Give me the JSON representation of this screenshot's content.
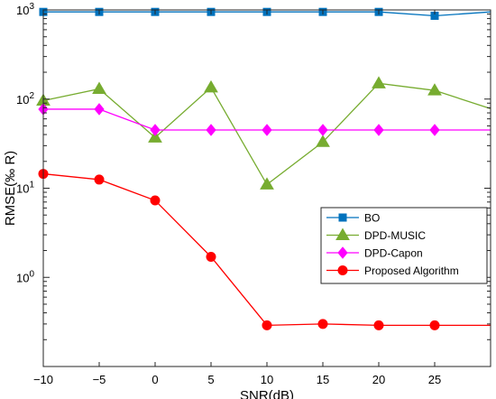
{
  "chart_data": {
    "type": "line",
    "xlabel": "SNR(dB)",
    "ylabel": "RMSE(‰ R)",
    "x": [
      -10,
      -5,
      0,
      5,
      10,
      15,
      20,
      25,
      30
    ],
    "xlim": [
      -10,
      30
    ],
    "xticks": [
      -10,
      -5,
      0,
      5,
      10,
      15,
      20,
      25
    ],
    "xtick_labels": [
      "−10",
      "−5",
      "0",
      "5",
      "10",
      "15",
      "20",
      "25"
    ],
    "y_scale": "log",
    "ylim": [
      0.1,
      1000
    ],
    "yticks": [
      {
        "value": 1,
        "base": "10",
        "exp": "0"
      },
      {
        "value": 10,
        "base": "10",
        "exp": "1"
      },
      {
        "value": 100,
        "base": "10",
        "exp": "2"
      },
      {
        "value": 1000,
        "base": "10",
        "exp": "3"
      }
    ],
    "grid": false,
    "legend_position": "lower-right",
    "series": [
      {
        "name": "BO",
        "color": "#0072BD",
        "marker": "square",
        "values": [
          950,
          950,
          950,
          950,
          950,
          950,
          950,
          860,
          950
        ]
      },
      {
        "name": "DPD-MUSIC",
        "color": "#77AC30",
        "marker": "triangle",
        "values": [
          96,
          130,
          37,
          135,
          11,
          33,
          150,
          125,
          78
        ]
      },
      {
        "name": "DPD-Capon",
        "color": "#FF00FF",
        "marker": "diamond",
        "values": [
          77,
          77,
          45,
          45,
          45,
          45,
          45,
          45,
          45
        ]
      },
      {
        "name": "Proposed Algorithm",
        "color": "#FF0000",
        "marker": "circle",
        "values": [
          14.5,
          12.5,
          7.3,
          1.7,
          0.29,
          0.3,
          0.29,
          0.29,
          0.29
        ]
      }
    ]
  }
}
